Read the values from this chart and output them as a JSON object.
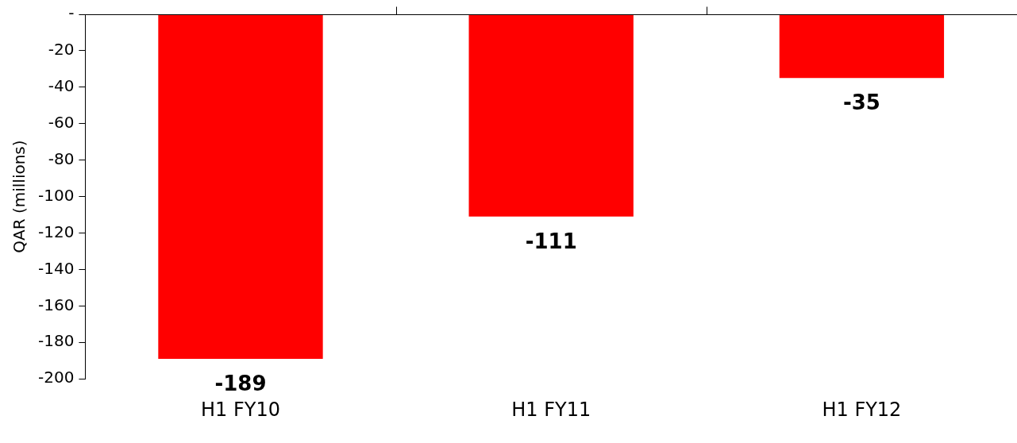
{
  "chart_data": {
    "type": "bar",
    "ylabel": "QAR (millions)",
    "categories": [
      "H1 FY10",
      "H1 FY11",
      "H1 FY12"
    ],
    "values": [
      -189,
      -111,
      -35
    ],
    "color": "#ff0000",
    "ylim": [
      -200,
      0
    ],
    "yticks": [
      {
        "value": 0,
        "label": "-"
      },
      -20,
      -40,
      -60,
      -80,
      -100,
      -120,
      -140,
      -160,
      -180,
      -200
    ],
    "data_labels": true,
    "grid": false,
    "legend": false
  }
}
